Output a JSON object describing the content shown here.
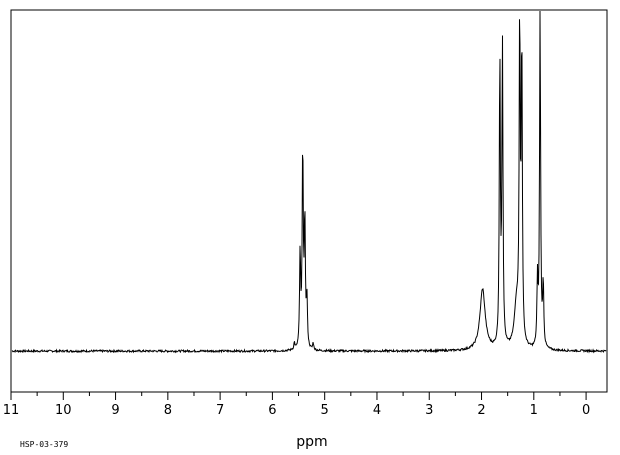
{
  "chart_data": {
    "type": "line",
    "xlabel": "ppm",
    "ylabel": "",
    "xlim": [
      11.0,
      -0.4
    ],
    "ylim": [
      -0.12,
      1.0
    ],
    "x_axis_reversed": true,
    "x_ticks": [
      11,
      10,
      9,
      8,
      7,
      6,
      5,
      4,
      3,
      2,
      1,
      0
    ],
    "x_tick_labels": [
      "11",
      "10",
      "9",
      "8",
      "7",
      "6",
      "5",
      "4",
      "3",
      "2",
      "1",
      "0"
    ],
    "grid": false,
    "legend": "none",
    "code": "HSP-03-379",
    "series_color": "#000000",
    "peaks": [
      {
        "ppm": 5.58,
        "height": 0.02
      },
      {
        "ppm": 5.47,
        "height": 0.28
      },
      {
        "ppm": 5.42,
        "height": 0.6
      },
      {
        "ppm": 5.38,
        "height": 0.38
      },
      {
        "ppm": 5.34,
        "height": 0.14
      },
      {
        "ppm": 5.22,
        "height": 0.02
      },
      {
        "ppm": 1.98,
        "height": 0.18
      },
      {
        "ppm": 1.65,
        "height": 0.85
      },
      {
        "ppm": 1.6,
        "height": 0.88
      },
      {
        "ppm": 1.33,
        "height": 0.13
      },
      {
        "ppm": 1.27,
        "height": 0.93
      },
      {
        "ppm": 1.23,
        "height": 0.88
      },
      {
        "ppm": 0.93,
        "height": 0.19
      },
      {
        "ppm": 0.88,
        "height": 0.99
      },
      {
        "ppm": 0.82,
        "height": 0.19
      }
    ]
  }
}
